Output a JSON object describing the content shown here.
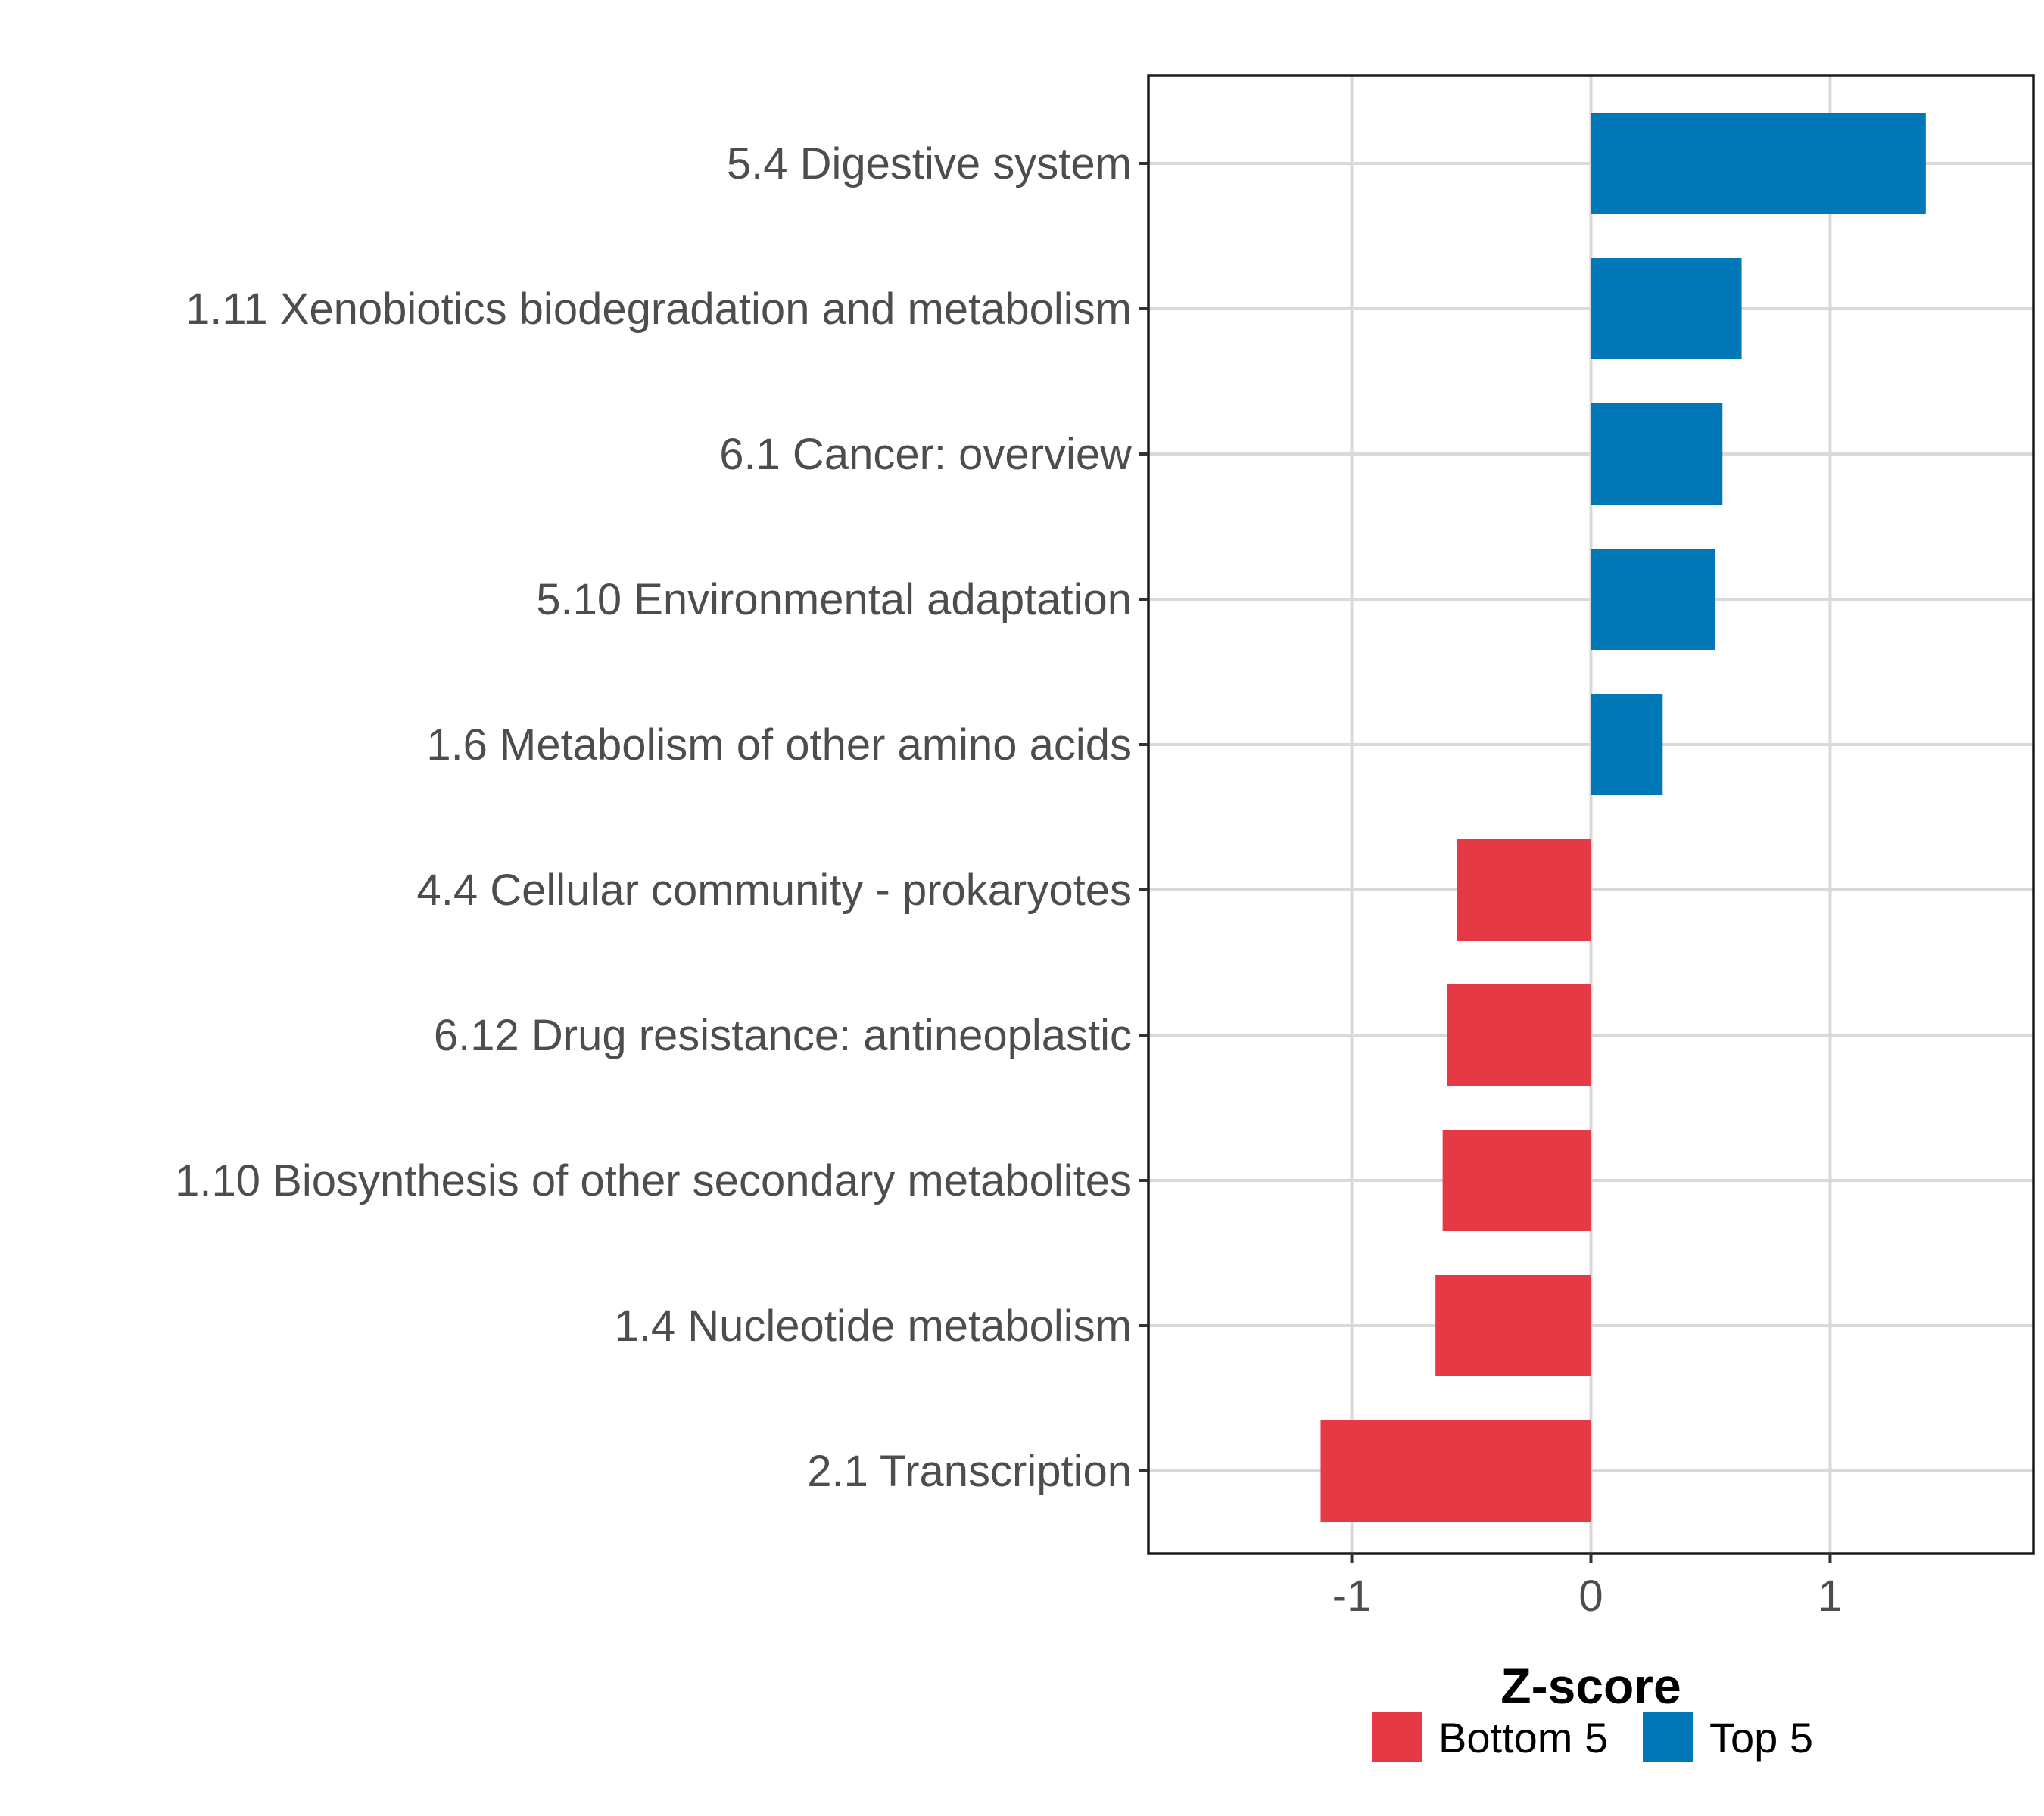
{
  "chart_data": {
    "type": "bar",
    "orientation": "horizontal",
    "title": "",
    "xlabel": "Z-score",
    "ylabel": "",
    "xlim": [
      -1.85,
      1.85
    ],
    "xticks": [
      -1,
      0,
      1
    ],
    "xtick_labels": [
      "-1",
      "0",
      "1"
    ],
    "grid": true,
    "legend_position": "bottom",
    "categories": [
      "5.4 Digestive system",
      "1.11 Xenobiotics biodegradation and metabolism",
      "6.1 Cancer: overview",
      "5.10 Environmental adaptation",
      "1.6 Metabolism of other amino acids",
      "4.4 Cellular community - prokaryotes",
      "6.12 Drug resistance: antineoplastic",
      "1.10 Biosynthesis of other secondary metabolites",
      "1.4 Nucleotide metabolism",
      "2.1 Transcription"
    ],
    "values": [
      1.4,
      0.63,
      0.55,
      0.52,
      0.3,
      -0.56,
      -0.6,
      -0.62,
      -0.65,
      -1.13
    ],
    "groups": [
      "Top 5",
      "Top 5",
      "Top 5",
      "Top 5",
      "Top 5",
      "Bottom 5",
      "Bottom 5",
      "Bottom 5",
      "Bottom 5",
      "Bottom 5"
    ],
    "legend": [
      {
        "name": "Bottom 5",
        "color": "#E63946"
      },
      {
        "name": "Top 5",
        "color": "#0077B6"
      }
    ]
  }
}
